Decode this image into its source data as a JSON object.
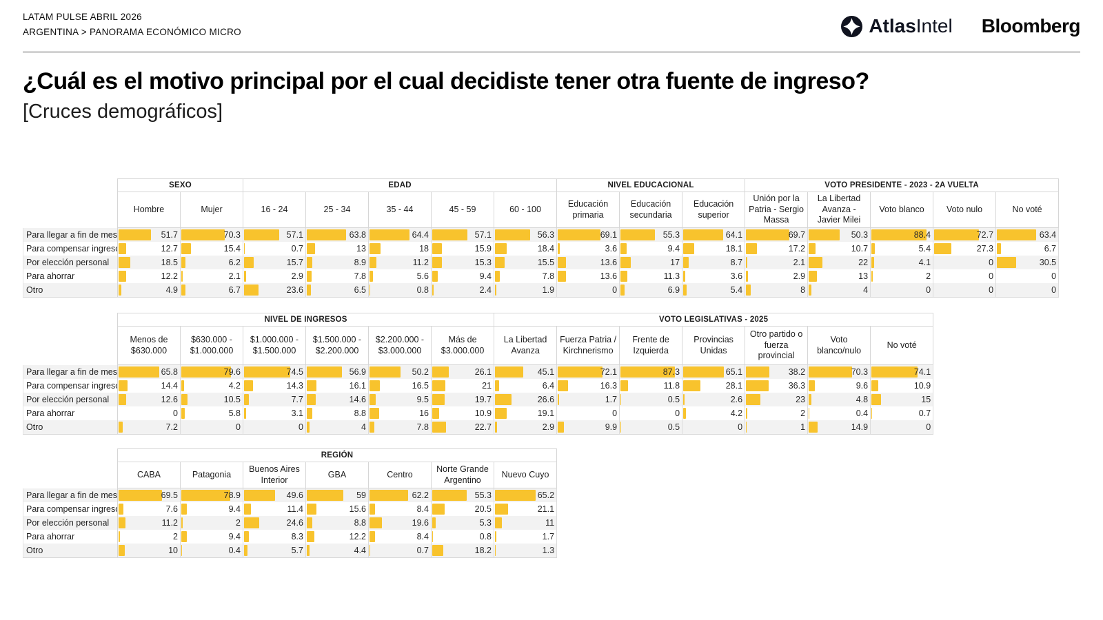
{
  "header": {
    "kicker_line1": "LATAM PULSE ABRIL 2026",
    "kicker_line2": "ARGENTINA > PANORAMA ECONÓMICO MICRO",
    "logo_atlas_bold": "Atlas",
    "logo_atlas_light": "Intel",
    "logo_bloomberg": "Bloomberg"
  },
  "title": "¿Cuál es el motivo principal por el cual decidiste tener otra fuente de ingreso?",
  "subtitle": "[Cruces demográficos]",
  "colors": {
    "bar": "#F8C32D",
    "row_stripe": "#F2F2F2",
    "border": "#D9D9D9"
  },
  "chart_data": [
    {
      "type": "bar",
      "orientation": "horizontal",
      "value_range": [
        0,
        100
      ],
      "groups": [
        {
          "label": "SEXO",
          "span": 2
        },
        {
          "label": "EDAD",
          "span": 5
        },
        {
          "label": "NIVEL EDUCACIONAL",
          "span": 3
        },
        {
          "label": "VOTO PRESIDENTE - 2023 - 2A VUELTA",
          "span": 5
        }
      ],
      "columns": [
        "Hombre",
        "Mujer",
        "16 - 24",
        "25 - 34",
        "35 - 44",
        "45 - 59",
        "60 - 100",
        "Educación primaria",
        "Educación secundaria",
        "Educación superior",
        "Unión por la Patria - Sergio Massa",
        "La Libertad Avanza - Javier Milei",
        "Voto blanco",
        "Voto nulo",
        "No voté"
      ],
      "rows": [
        {
          "label": "Para llegar a fin de mes",
          "values": [
            51.7,
            70.3,
            57.1,
            63.8,
            64.4,
            57.1,
            56.3,
            69.1,
            55.3,
            64.1,
            69.7,
            50.3,
            88.4,
            72.7,
            63.4
          ]
        },
        {
          "label": "Para compensar ingresos",
          "values": [
            12.7,
            15.4,
            0.7,
            13,
            18,
            15.9,
            18.4,
            3.6,
            9.4,
            18.1,
            17.2,
            10.7,
            5.4,
            27.3,
            6.7
          ]
        },
        {
          "label": "Por elección personal",
          "values": [
            18.5,
            6.2,
            15.7,
            8.9,
            11.2,
            15.3,
            15.5,
            13.6,
            17,
            8.7,
            2.1,
            22,
            4.1,
            0,
            30.5
          ]
        },
        {
          "label": "Para ahorrar",
          "values": [
            12.2,
            2.1,
            2.9,
            7.8,
            5.6,
            9.4,
            7.8,
            13.6,
            11.3,
            3.6,
            2.9,
            13,
            2,
            0,
            0
          ]
        },
        {
          "label": "Otro",
          "values": [
            4.9,
            6.7,
            23.6,
            6.5,
            0.8,
            2.4,
            1.9,
            0,
            6.9,
            5.4,
            8,
            4,
            0,
            0,
            0
          ]
        }
      ]
    },
    {
      "type": "bar",
      "orientation": "horizontal",
      "value_range": [
        0,
        100
      ],
      "groups": [
        {
          "label": "NIVEL DE INGRESOS",
          "span": 6
        },
        {
          "label": "VOTO LEGISLATIVAS - 2025",
          "span": 7
        }
      ],
      "columns": [
        "Menos de $630.000",
        "$630.000 - $1.000.000",
        "$1.000.000 - $1.500.000",
        "$1.500.000 - $2.200.000",
        "$2.200.000 - $3.000.000",
        "Más de $3.000.000",
        "La Libertad Avanza",
        "Fuerza Patria / Kirchnerismo",
        "Frente de Izquierda",
        "Provincias Unidas",
        "Otro partido o fuerza provincial",
        "Voto blanco/nulo",
        "No voté"
      ],
      "rows": [
        {
          "label": "Para llegar a fin de mes",
          "values": [
            65.8,
            79.6,
            74.5,
            56.9,
            50.2,
            26.1,
            45.1,
            72.1,
            87.3,
            65.1,
            38.2,
            70.3,
            74.1
          ]
        },
        {
          "label": "Para compensar ingresos",
          "values": [
            14.4,
            4.2,
            14.3,
            16.1,
            16.5,
            21,
            6.4,
            16.3,
            11.8,
            28.1,
            36.3,
            9.6,
            10.9
          ]
        },
        {
          "label": "Por elección personal",
          "values": [
            12.6,
            10.5,
            7.7,
            14.6,
            9.5,
            19.7,
            26.6,
            1.7,
            0.5,
            2.6,
            23,
            4.8,
            15
          ]
        },
        {
          "label": "Para ahorrar",
          "values": [
            0,
            5.8,
            3.1,
            8.8,
            16,
            10.9,
            19.1,
            0,
            0,
            4.2,
            2,
            0.4,
            0.7
          ]
        },
        {
          "label": "Otro",
          "values": [
            7.2,
            0,
            0,
            4,
            7.8,
            22.7,
            2.9,
            9.9,
            0.5,
            0,
            1,
            14.9,
            0
          ]
        }
      ]
    },
    {
      "type": "bar",
      "orientation": "horizontal",
      "value_range": [
        0,
        100
      ],
      "groups": [
        {
          "label": "REGIÓN",
          "span": 7
        }
      ],
      "columns": [
        "CABA",
        "Patagonia",
        "Buenos Aires Interior",
        "GBA",
        "Centro",
        "Norte Grande Argentino",
        "Nuevo Cuyo"
      ],
      "rows": [
        {
          "label": "Para llegar a fin de mes",
          "values": [
            69.5,
            78.9,
            49.6,
            59,
            62.2,
            55.3,
            65.2
          ]
        },
        {
          "label": "Para compensar ingresos",
          "values": [
            7.6,
            9.4,
            11.4,
            15.6,
            8.4,
            20.5,
            21.1
          ]
        },
        {
          "label": "Por elección personal",
          "values": [
            11.2,
            2,
            24.6,
            8.8,
            19.6,
            5.3,
            11
          ]
        },
        {
          "label": "Para ahorrar",
          "values": [
            2,
            9.4,
            8.3,
            12.2,
            8.4,
            0.8,
            1.7
          ]
        },
        {
          "label": "Otro",
          "values": [
            10,
            0.4,
            5.7,
            4.4,
            0.7,
            18.2,
            1.3
          ]
        }
      ]
    }
  ]
}
